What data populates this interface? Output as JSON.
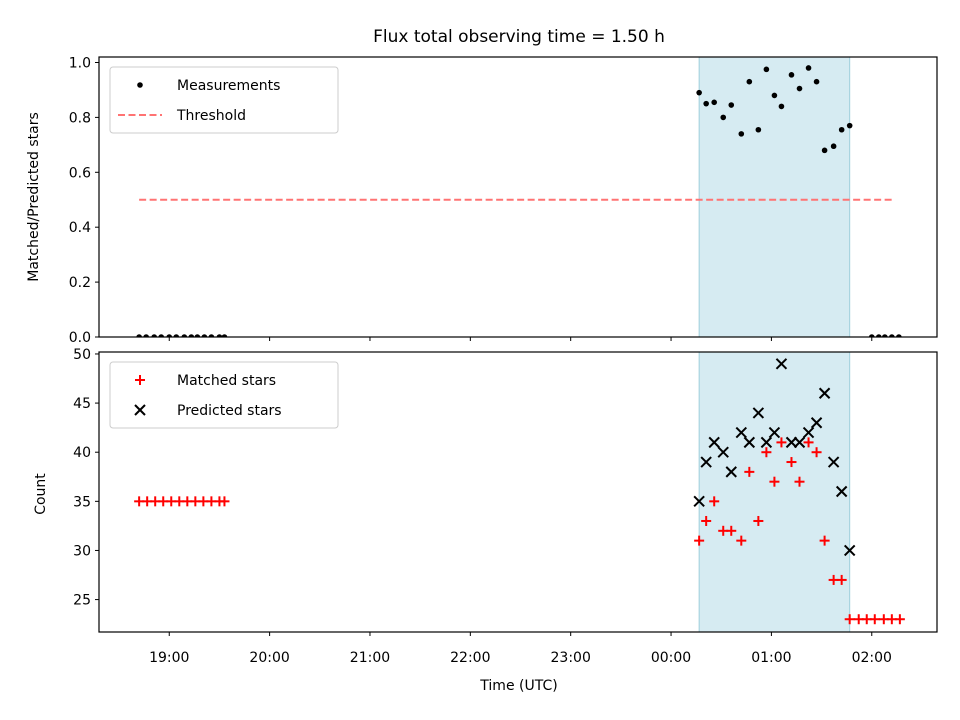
{
  "chart_data": {
    "type": "scatter",
    "title": "Flux total observing time = 1.50 h",
    "xlabel": "Time (UTC)",
    "x_unit": "hours (UTC, 24 = 00:00 next day)",
    "xlim": [
      18.3,
      26.65
    ],
    "x_ticks": [
      {
        "v": 19,
        "label": "19:00"
      },
      {
        "v": 20,
        "label": "20:00"
      },
      {
        "v": 21,
        "label": "21:00"
      },
      {
        "v": 22,
        "label": "22:00"
      },
      {
        "v": 23,
        "label": "23:00"
      },
      {
        "v": 24,
        "label": "00:00"
      },
      {
        "v": 25,
        "label": "01:00"
      },
      {
        "v": 26,
        "label": "02:00"
      }
    ],
    "observing_window": [
      24.28,
      25.78
    ],
    "panels": [
      {
        "id": "ratio",
        "ylabel": "Matched/Predicted stars",
        "ylim": [
          0.0,
          1.02
        ],
        "y_ticks": [
          "0.0",
          "0.2",
          "0.4",
          "0.6",
          "0.8",
          "1.0"
        ],
        "legend": "upper-left",
        "series": [
          {
            "name": "Measurements",
            "marker": "dot",
            "color": "#000000",
            "x": [
              18.7,
              18.77,
              18.85,
              18.92,
              19.0,
              19.07,
              19.15,
              19.22,
              19.28,
              19.35,
              19.42,
              19.5,
              19.55,
              24.28,
              24.35,
              24.43,
              24.52,
              24.6,
              24.7,
              24.78,
              24.87,
              24.95,
              25.03,
              25.1,
              25.2,
              25.28,
              25.37,
              25.45,
              25.53,
              25.62,
              25.7,
              25.78,
              26.0,
              26.07,
              26.13,
              26.2,
              26.27
            ],
            "y": [
              0,
              0,
              0,
              0,
              0,
              0,
              0,
              0,
              0,
              0,
              0,
              0,
              0,
              0.89,
              0.85,
              0.855,
              0.8,
              0.845,
              0.74,
              0.93,
              0.755,
              0.975,
              0.88,
              0.84,
              0.955,
              0.905,
              0.98,
              0.93,
              0.68,
              0.695,
              0.755,
              0.77,
              0,
              0,
              0,
              0,
              0
            ]
          },
          {
            "name": "Threshold",
            "marker": "dashed-line",
            "color": "#ff7373",
            "x": [
              18.7,
              26.23
            ],
            "y": [
              0.5,
              0.5
            ]
          }
        ]
      },
      {
        "id": "counts",
        "ylabel": "Count",
        "ylim": [
          21.7,
          50.2
        ],
        "y_ticks": [
          "25",
          "30",
          "35",
          "40",
          "45",
          "50"
        ],
        "legend": "upper-left",
        "series": [
          {
            "name": "Matched stars",
            "marker": "plus",
            "color": "#ff0000",
            "x": [
              18.7,
              18.78,
              18.86,
              18.94,
              19.02,
              19.1,
              19.18,
              19.26,
              19.34,
              19.42,
              19.5,
              19.55,
              24.28,
              24.35,
              24.43,
              24.52,
              24.6,
              24.7,
              24.78,
              24.87,
              24.95,
              25.03,
              25.1,
              25.2,
              25.28,
              25.37,
              25.45,
              25.53,
              25.62,
              25.7,
              25.78,
              25.87,
              25.95,
              26.03,
              26.12,
              26.2,
              26.28
            ],
            "y": [
              35,
              35,
              35,
              35,
              35,
              35,
              35,
              35,
              35,
              35,
              35,
              35,
              31,
              33,
              35,
              32,
              32,
              31,
              38,
              33,
              40,
              37,
              41,
              39,
              37,
              41,
              40,
              31,
              27,
              27,
              23,
              23,
              23,
              23,
              23,
              23,
              23
            ]
          },
          {
            "name": "Predicted stars",
            "marker": "x",
            "color": "#000000",
            "x": [
              24.28,
              24.35,
              24.43,
              24.52,
              24.6,
              24.7,
              24.78,
              24.87,
              24.95,
              25.03,
              25.1,
              25.2,
              25.28,
              25.37,
              25.45,
              25.53,
              25.62,
              25.7,
              25.78
            ],
            "y": [
              35,
              39,
              41,
              40,
              38,
              42,
              41,
              44,
              41,
              42,
              49,
              41,
              41,
              42,
              43,
              46,
              39,
              36,
              30
            ]
          }
        ]
      }
    ]
  }
}
